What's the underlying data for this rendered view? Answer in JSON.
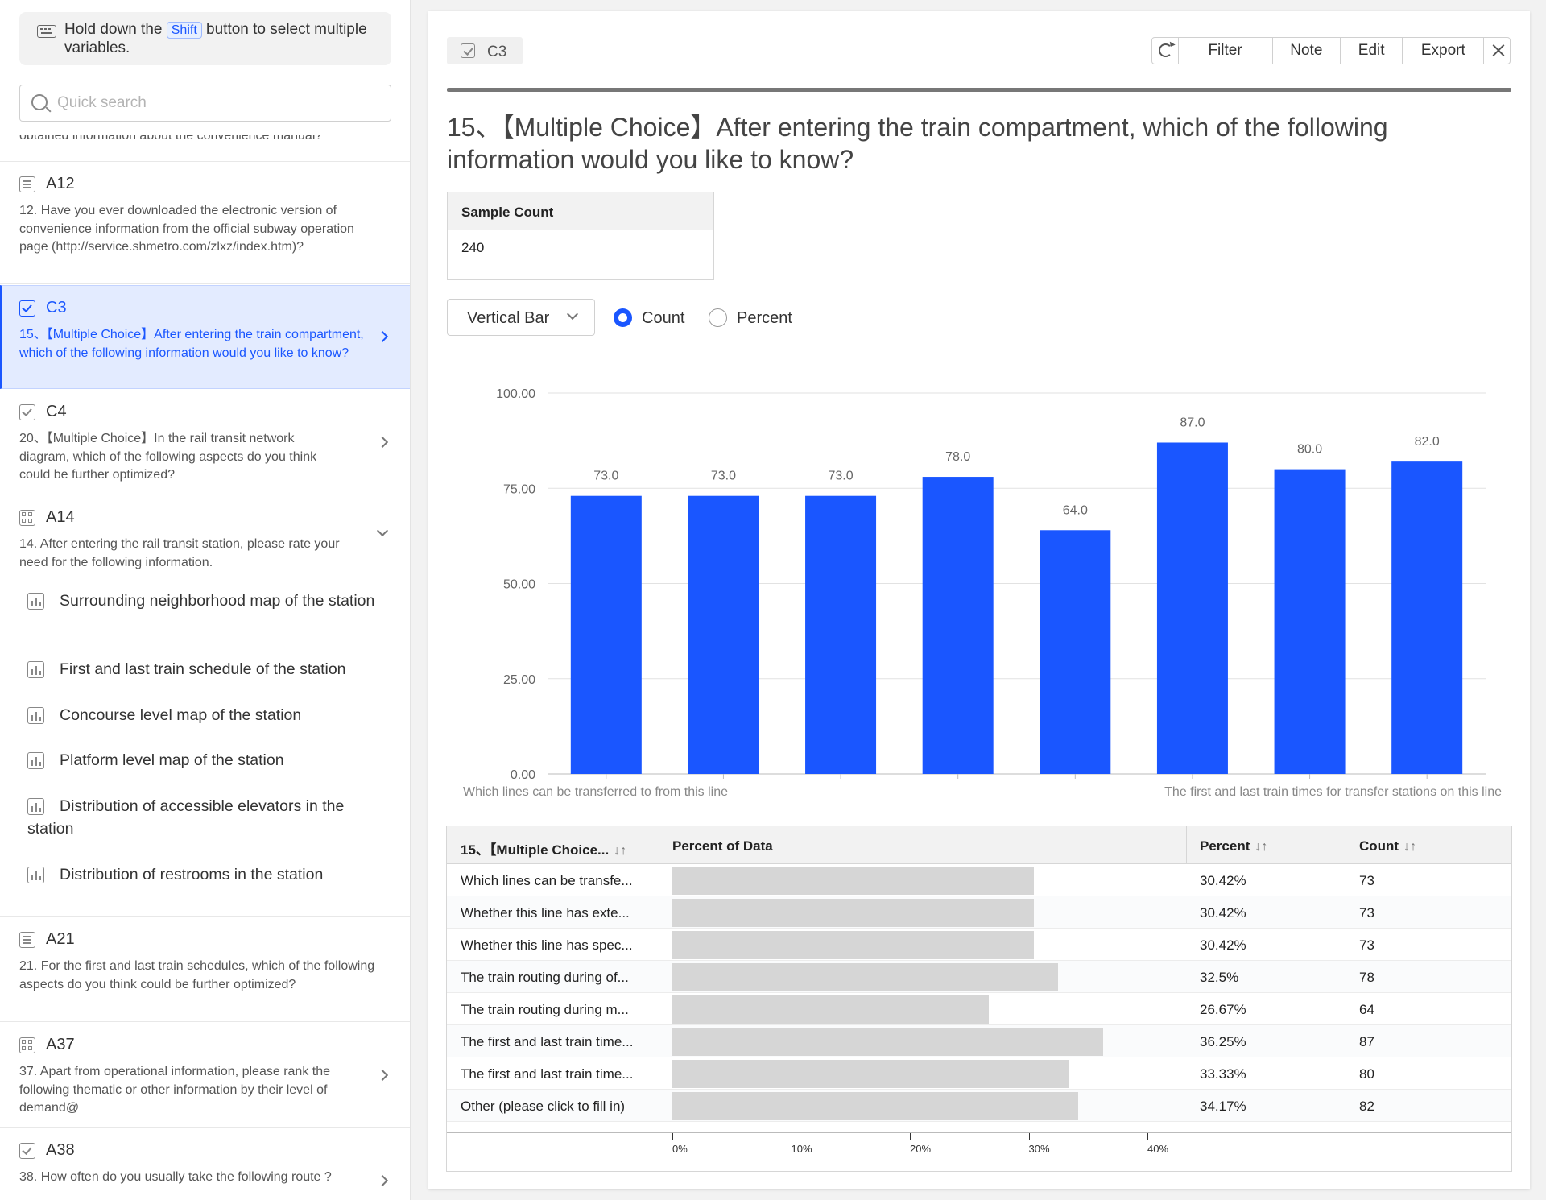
{
  "sidebar": {
    "hint_before": "Hold down the ",
    "hint_key": "Shift",
    "hint_after": " button to select multiple variables.",
    "search_placeholder": "Quick search",
    "partial_text": "obtained information about the convenience manual?",
    "items": [
      {
        "code": "A12",
        "icon": "list-icon",
        "desc": "12. Have you ever downloaded the electronic version of convenience information from the official subway operation page (http://service.shmetro.com/zlxz/index.htm)?"
      },
      {
        "code": "C3",
        "icon": "checkbox-icon",
        "desc": "15、【Multiple Choice】After entering the train compartment, which of the following information would you like to know?"
      },
      {
        "code": "C4",
        "icon": "checkbox-icon",
        "desc": "20、【Multiple Choice】In the rail transit network diagram, which of the following aspects do you think could be further optimized?"
      },
      {
        "code": "A14",
        "icon": "grid-icon",
        "desc": "14. After entering the rail transit station, please rate your need for the following information."
      },
      {
        "code": "A21",
        "icon": "list-icon",
        "desc": "21. For the first and last train schedules, which of the following aspects do you think could be further optimized?"
      },
      {
        "code": "A37",
        "icon": "grid-icon",
        "desc": "37. Apart from operational information, please rank the following thematic or other information by their level of demand@"
      },
      {
        "code": "A38",
        "icon": "checkbox-icon",
        "desc": "38. How often do you usually take the following route ?"
      }
    ],
    "sub_items": [
      "Surrounding neighborhood map of the station",
      "First and last train schedule of the station",
      "Concourse level map of the station",
      "Platform level map of the station",
      "Distribution of accessible elevators in the station",
      "Distribution of restrooms in the station"
    ]
  },
  "main": {
    "var_code": "C3",
    "toolbar": {
      "filter": "Filter",
      "note": "Note",
      "edit": "Edit",
      "export": "Export"
    },
    "question_title": "15、【Multiple Choice】After entering the train compartment, which of the following information would you like to know?",
    "sample_label": "Sample Count",
    "sample_value": "240",
    "chart_type_label": "Vertical Bar",
    "radio_count": "Count",
    "radio_percent": "Percent",
    "table": {
      "col1": "15、【Multiple Choice...",
      "col2": "Percent of Data",
      "col3": "Percent",
      "col4": "Count",
      "sort_icon": "↓↑",
      "rows": [
        {
          "label": "Which lines can be transfe...",
          "percent": "30.42%",
          "count": "73",
          "frac": 0.3042
        },
        {
          "label": "Whether this line has exte...",
          "percent": "30.42%",
          "count": "73",
          "frac": 0.3042
        },
        {
          "label": "Whether this line has spec...",
          "percent": "30.42%",
          "count": "73",
          "frac": 0.3042
        },
        {
          "label": "The train routing during of...",
          "percent": "32.5%",
          "count": "78",
          "frac": 0.325
        },
        {
          "label": "The train routing during m...",
          "percent": "26.67%",
          "count": "64",
          "frac": 0.2667
        },
        {
          "label": "The first and last train time...",
          "percent": "36.25%",
          "count": "87",
          "frac": 0.3625
        },
        {
          "label": "The first and last train time...",
          "percent": "33.33%",
          "count": "80",
          "frac": 0.3333
        },
        {
          "label": "Other (please click to fill in)",
          "percent": "34.17%",
          "count": "82",
          "frac": 0.3417
        }
      ],
      "axis_ticks": [
        "0%",
        "10%",
        "20%",
        "30%",
        "40%"
      ]
    }
  },
  "colors": {
    "accent": "#1a56ff",
    "bar": "#1a56ff",
    "table_bar": "#d6d6d6"
  },
  "chart_data": {
    "type": "bar",
    "categories": [
      "Which lines can be transferred to from this line",
      "",
      "",
      "",
      "",
      "",
      "The first and last train times for transfer stations on this line",
      ""
    ],
    "values": [
      73,
      73,
      73,
      78,
      64,
      87,
      80,
      82
    ],
    "value_labels": [
      "73.0",
      "73.0",
      "73.0",
      "78.0",
      "64.0",
      "87.0",
      "80.0",
      "82.0"
    ],
    "y_ticks": [
      "0.00",
      "25.00",
      "50.00",
      "75.00",
      "100.00"
    ],
    "ylim": [
      0,
      100
    ],
    "grid": true,
    "title": "",
    "xlabel": "",
    "ylabel": ""
  }
}
